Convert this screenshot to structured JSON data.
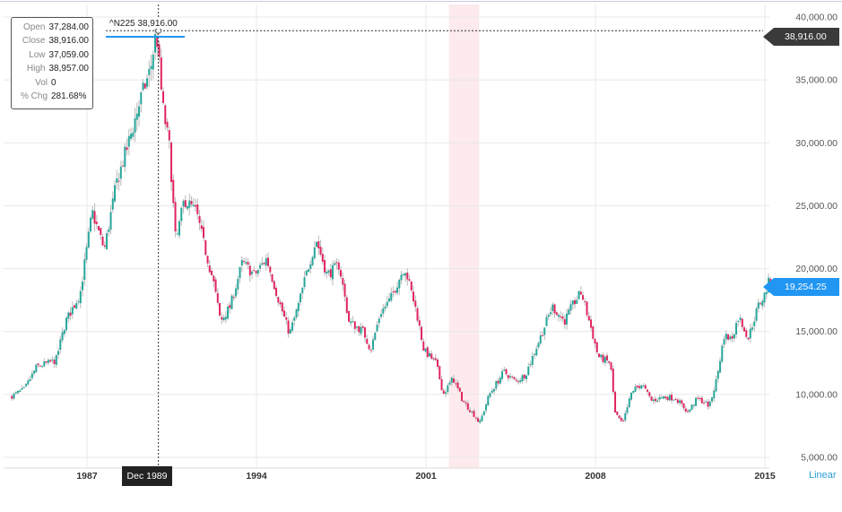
{
  "chart_data": {
    "type": "candlestick",
    "symbol_label": "^N225 38,916.00",
    "ohlc_tooltip": {
      "rows": [
        {
          "key": "Open",
          "value": "37,284.00"
        },
        {
          "key": "Close",
          "value": "38,916.00"
        },
        {
          "key": "Low",
          "value": "37,059.00"
        },
        {
          "key": "High",
          "value": "38,957.00"
        },
        {
          "key": "Vol",
          "value": "0"
        },
        {
          "key": "% Chg",
          "value": "281.68%"
        }
      ]
    },
    "crosshair_label": "Dec 1989",
    "crosshair_value": 38916,
    "last_value": 19254.25,
    "last_value_label": "19,254.25",
    "crosshair_value_label": "38,916.00",
    "scale_mode": "Linear",
    "x_range": [
      1983.8,
      2016.5
    ],
    "ylim": [
      4500,
      41000
    ],
    "x_ticks": [
      {
        "label": "1987",
        "value": 1987.0
      },
      {
        "label": "1994",
        "value": 1994.0
      },
      {
        "label": "2001",
        "value": 2001.0
      },
      {
        "label": "2008",
        "value": 2008.0
      },
      {
        "label": "2015",
        "value": 2015.0
      }
    ],
    "y_ticks": [
      {
        "label": "40,000.00",
        "value": 40000
      },
      {
        "label": "35,000.00",
        "value": 35000
      },
      {
        "label": "30,000.00",
        "value": 30000
      },
      {
        "label": "25,000.00",
        "value": 25000
      },
      {
        "label": "20,000.00",
        "value": 20000
      },
      {
        "label": "15,000.00",
        "value": 15000
      },
      {
        "label": "10,000.00",
        "value": 10000
      },
      {
        "label": "5,000.00",
        "value": 5000
      }
    ],
    "anchors": [
      [
        1983.9,
        9800
      ],
      [
        1984.5,
        10400
      ],
      [
        1985.0,
        12200
      ],
      [
        1985.8,
        12700
      ],
      [
        1986.2,
        15800
      ],
      [
        1986.8,
        18000
      ],
      [
        1987.3,
        24500
      ],
      [
        1987.8,
        21500
      ],
      [
        1988.3,
        26800
      ],
      [
        1988.8,
        30000
      ],
      [
        1989.3,
        33500
      ],
      [
        1989.7,
        35800
      ],
      [
        1989.95,
        38916
      ],
      [
        1990.2,
        33000
      ],
      [
        1990.5,
        29500
      ],
      [
        1990.75,
        22000
      ],
      [
        1991.1,
        25500
      ],
      [
        1991.6,
        24500
      ],
      [
        1991.9,
        22000
      ],
      [
        1992.3,
        19000
      ],
      [
        1992.6,
        15800
      ],
      [
        1993.0,
        17000
      ],
      [
        1993.5,
        20500
      ],
      [
        1994.0,
        19500
      ],
      [
        1994.5,
        20800
      ],
      [
        1995.0,
        17500
      ],
      [
        1995.45,
        14800
      ],
      [
        1995.8,
        17000
      ],
      [
        1996.2,
        20000
      ],
      [
        1996.55,
        22300
      ],
      [
        1997.0,
        19500
      ],
      [
        1997.5,
        20300
      ],
      [
        1997.9,
        15800
      ],
      [
        1998.5,
        15000
      ],
      [
        1998.8,
        13500
      ],
      [
        1999.2,
        16500
      ],
      [
        1999.6,
        17500
      ],
      [
        2000.2,
        20200
      ],
      [
        2000.7,
        16500
      ],
      [
        2001.0,
        13500
      ],
      [
        2001.5,
        12500
      ],
      [
        2001.8,
        10000
      ],
      [
        2002.2,
        11300
      ],
      [
        2002.6,
        9500
      ],
      [
        2003.1,
        8300
      ],
      [
        2003.3,
        7700
      ],
      [
        2003.7,
        10000
      ],
      [
        2004.3,
        11800
      ],
      [
        2004.8,
        11000
      ],
      [
        2005.2,
        11600
      ],
      [
        2005.8,
        14500
      ],
      [
        2006.3,
        17000
      ],
      [
        2006.8,
        15800
      ],
      [
        2007.2,
        17300
      ],
      [
        2007.5,
        18100
      ],
      [
        2007.9,
        15300
      ],
      [
        2008.2,
        13000
      ],
      [
        2008.7,
        12500
      ],
      [
        2008.9,
        8500
      ],
      [
        2009.2,
        7600
      ],
      [
        2009.6,
        10300
      ],
      [
        2010.0,
        10800
      ],
      [
        2010.4,
        9500
      ],
      [
        2010.9,
        9800
      ],
      [
        2011.4,
        9700
      ],
      [
        2011.9,
        8600
      ],
      [
        2012.3,
        9700
      ],
      [
        2012.8,
        9100
      ],
      [
        2013.1,
        11300
      ],
      [
        2013.4,
        14700
      ],
      [
        2013.7,
        14400
      ],
      [
        2014.0,
        16200
      ],
      [
        2014.4,
        14500
      ],
      [
        2014.8,
        17000
      ],
      [
        2015.05,
        17800
      ],
      [
        2015.3,
        19254.25
      ]
    ],
    "highlight_band": [
      2001.95,
      2003.2
    ],
    "colors": {
      "up": "#26a69a",
      "down": "#e0245e",
      "wick": "#b9b9b9",
      "grid": "#e8e8e8",
      "band": "#f7c3c9",
      "accent": "#2196f3",
      "axis_text": "#555555"
    }
  }
}
